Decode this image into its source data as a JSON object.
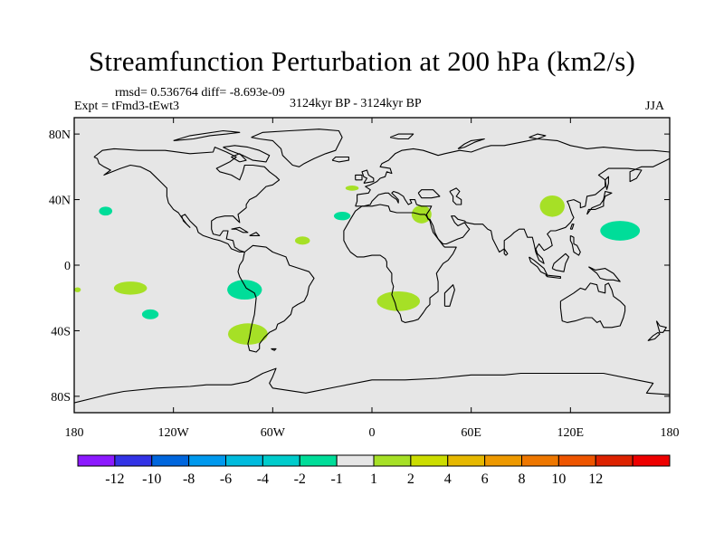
{
  "header": {
    "title": "Streamfunction Perturbation at 200 hPa (km2/s)",
    "stats": "rmsd= 0.536764 diff= -8.693e-09",
    "experiment": "Expt = tFmd3-tEwt3",
    "period": "3124kyr BP - 3124kyr BP",
    "season": "JJA"
  },
  "map": {
    "ocean_color": "#e6e6e6",
    "coast_color": "#000000",
    "lat_labels": [
      "80N",
      "40N",
      "0",
      "40S",
      "80S"
    ],
    "lon_labels": [
      "180",
      "120W",
      "60W",
      "0",
      "60E",
      "120E",
      "180"
    ]
  },
  "features": [
    {
      "name": "blob-north-pacific",
      "lon": -161,
      "lat": 33,
      "rlon": 4,
      "rlat": 2.7,
      "color": "#00dd99"
    },
    {
      "name": "blob-gulf-mexico",
      "lon": -42,
      "lat": 15,
      "rlon": 4.5,
      "rlat": 2.5,
      "color": "#a6e026"
    },
    {
      "name": "blob-azores",
      "lon": -18,
      "lat": 30,
      "rlon": 5,
      "rlat": 2.6,
      "color": "#00dd99"
    },
    {
      "name": "blob-europe",
      "lon": -12,
      "lat": 47,
      "rlon": 4,
      "rlat": 1.6,
      "color": "#a6e026"
    },
    {
      "name": "blob-middle-east",
      "lon": 30,
      "lat": 31,
      "rlon": 6,
      "rlat": 5.5,
      "color": "#a6e026"
    },
    {
      "name": "blob-north-china",
      "lon": 109,
      "lat": 36,
      "rlon": 7.5,
      "rlat": 6.5,
      "color": "#a6e026"
    },
    {
      "name": "blob-northwest-pacific",
      "lon": 150,
      "lat": 21,
      "rlon": 12,
      "rlat": 6,
      "color": "#00dd99"
    },
    {
      "name": "blob-south-pacific-west",
      "lon": -146,
      "lat": -14,
      "rlon": 10,
      "rlat": 4,
      "color": "#a6e026"
    },
    {
      "name": "blob-dateline-south",
      "lon": -178,
      "lat": -15,
      "rlon": 2,
      "rlat": 1.5,
      "color": "#a6e026"
    },
    {
      "name": "blob-south-pacific-east",
      "lon": -77,
      "lat": -15,
      "rlon": 10.5,
      "rlat": 6,
      "color": "#00dd99"
    },
    {
      "name": "blob-south-pacific-mid",
      "lon": -134,
      "lat": -30,
      "rlon": 5,
      "rlat": 3,
      "color": "#00dd99"
    },
    {
      "name": "blob-south-africa",
      "lon": 16,
      "lat": -22,
      "rlon": 13,
      "rlat": 6,
      "color": "#a6e026"
    },
    {
      "name": "blob-drake-passage",
      "lon": -75,
      "lat": -42,
      "rlon": 12,
      "rlat": 6.5,
      "color": "#a6e026"
    }
  ],
  "colorbar": {
    "colors": [
      "#8c1aff",
      "#3333e6",
      "#0066dd",
      "#0099ee",
      "#00bbdd",
      "#00cccc",
      "#00dd99",
      "#e6e6e6",
      "#a6e026",
      "#ccdd00",
      "#e6b800",
      "#ee9900",
      "#ee7700",
      "#ee5500",
      "#dd2200",
      "#ee0000"
    ],
    "labels": [
      "-12",
      "-10",
      "-8",
      "-6",
      "-4",
      "-2",
      "-1",
      "1",
      "2",
      "4",
      "6",
      "8",
      "10",
      "12"
    ]
  }
}
